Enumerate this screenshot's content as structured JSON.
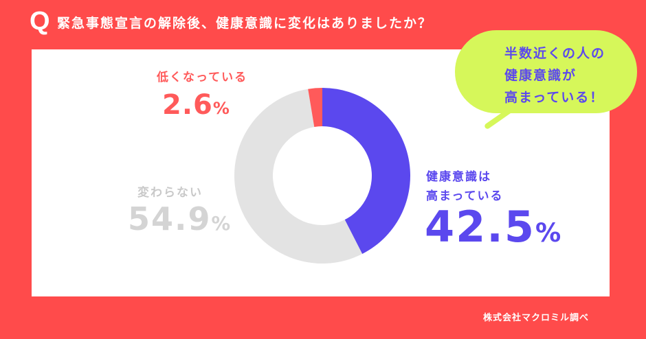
{
  "header": {
    "q_mark": "Q",
    "title": "緊急事態宣言の解除後、健康意識に変化はありましたか？"
  },
  "colors": {
    "background": "#ff4b4b",
    "panel": "#ffffff",
    "increased": "#5b48ee",
    "unchanged": "#e3e3e3",
    "decreased": "#ff5a5a",
    "bubble": "#d6f75a"
  },
  "labels": {
    "decreased": {
      "label": "低くなっている",
      "value": "2.6",
      "unit": "%"
    },
    "unchanged": {
      "label": "変わらない",
      "value": "54.9",
      "unit": "%"
    },
    "increased": {
      "label_line1": "健康意識は",
      "label_line2": "高まっている",
      "value": "42.5",
      "unit": "%"
    }
  },
  "callout": {
    "text": "半数近くの人の\n健康意識が\n高まっている！"
  },
  "footer": {
    "source": "株式会社マクロミル調べ"
  },
  "chart_data": {
    "type": "pie",
    "subtype": "donut",
    "title": "緊急事態宣言の解除後、健康意識に変化はありましたか？",
    "categories": [
      "健康意識は高まっている",
      "変わらない",
      "低くなっている"
    ],
    "values": [
      42.5,
      54.9,
      2.6
    ],
    "unit": "%",
    "colors": [
      "#5b48ee",
      "#e3e3e3",
      "#ff5a5a"
    ],
    "start_angle_deg": 0,
    "direction": "clockwise",
    "annotation": "半数近くの人の健康意識が高まっている！",
    "source": "株式会社マクロミル調べ"
  }
}
